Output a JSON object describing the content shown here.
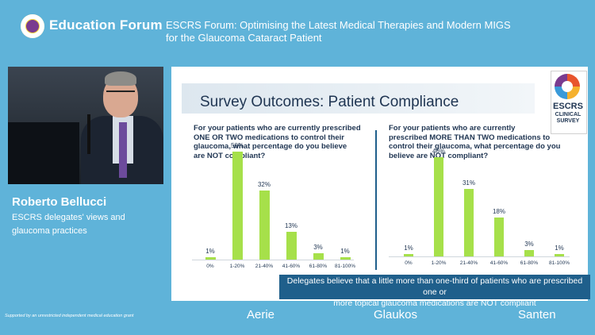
{
  "header": {
    "brand": "Education Forum",
    "title_line1": "ESCRS Forum: Optimising the Latest Medical Therapies and Modern MIGS",
    "title_line2": "for the Glaucoma Cataract Patient"
  },
  "speaker": {
    "name": "Roberto Bellucci",
    "role_line1": "ESCRS delegates' views and",
    "role_line2": "glaucoma practices"
  },
  "slide": {
    "title": "Survey Outcomes: Patient Compliance",
    "badge_top": "ESCRS",
    "badge_line1": "CLINICAL",
    "badge_line2": "SURVEY",
    "left_question": [
      "For your patients who are currently prescribed",
      "ONE OR TWO medications to control their",
      "glaucoma, what percentage do you believe",
      "are NOT compliant?"
    ],
    "right_question": [
      "For your patients who are currently",
      "prescribed MORE THAN TWO medications to",
      "control their glaucoma, what percentage do you",
      "believe are NOT compliant?"
    ],
    "conclusion_line1": "Delegates believe that a little more than one-third of patients who are prescribed one or",
    "conclusion_line2": "more topical glaucoma medications are NOT compliant"
  },
  "chart_data": [
    {
      "type": "bar",
      "categories": [
        "0%",
        "1-20%",
        "21-40%",
        "41-60%",
        "61-80%",
        "81-100%"
      ],
      "values": [
        1,
        50,
        32,
        13,
        3,
        1
      ],
      "value_labels": [
        "1%",
        "50%",
        "32%",
        "13%",
        "3%",
        "1%"
      ],
      "ylim": [
        0,
        55
      ]
    },
    {
      "type": "bar",
      "categories": [
        "0%",
        "1-20%",
        "21-40%",
        "41-60%",
        "61-80%",
        "81-100%"
      ],
      "values": [
        1,
        46,
        31,
        18,
        3,
        1
      ],
      "value_labels": [
        "1%",
        "46%",
        "31%",
        "18%",
        "3%",
        "1%"
      ],
      "ylim": [
        0,
        55
      ]
    }
  ],
  "footer": {
    "support": "Supported by an unrestricted independent medical education grant",
    "sponsors": [
      "Aerie",
      "Glaukos",
      "Santen"
    ]
  }
}
